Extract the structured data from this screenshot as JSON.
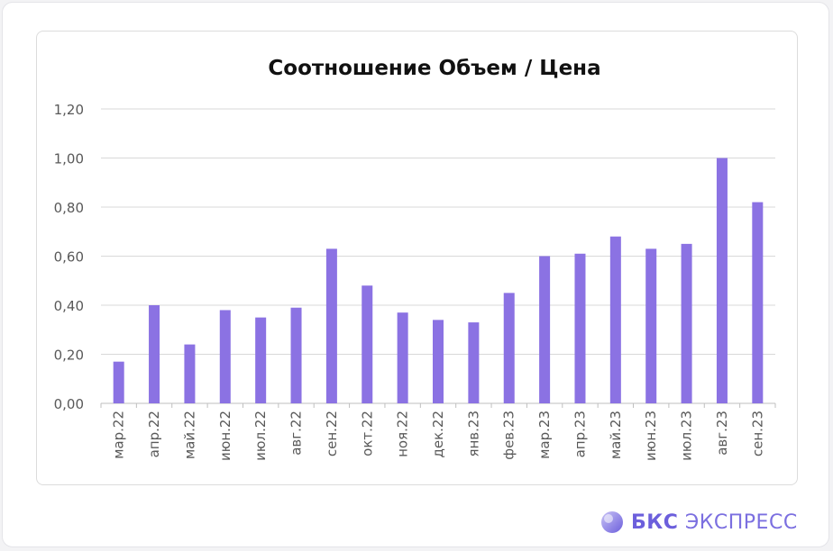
{
  "chart_data": {
    "type": "bar",
    "title": "Соотношение Объем / Цена",
    "categories": [
      "мар.22",
      "апр.22",
      "май.22",
      "июн.22",
      "июл.22",
      "авг.22",
      "сен.22",
      "окт.22",
      "ноя.22",
      "дек.22",
      "янв.23",
      "фев.23",
      "мар.23",
      "апр.23",
      "май.23",
      "июн.23",
      "июл.23",
      "авг.23",
      "сен.23"
    ],
    "values": [
      0.17,
      0.4,
      0.24,
      0.38,
      0.35,
      0.39,
      0.63,
      0.48,
      0.37,
      0.34,
      0.33,
      0.45,
      0.6,
      0.61,
      0.68,
      0.63,
      0.65,
      1.0,
      0.82
    ],
    "ylim": [
      0,
      1.2
    ],
    "yticks": [
      "0,00",
      "0,20",
      "0,40",
      "0,60",
      "0,80",
      "1,00",
      "1,20"
    ],
    "grid": true,
    "bar_color": "#8b72e3"
  },
  "brand": {
    "name_bold": "БКС",
    "name_rest": "ЭКСПРЕСС",
    "color": "#7b6fe0"
  }
}
